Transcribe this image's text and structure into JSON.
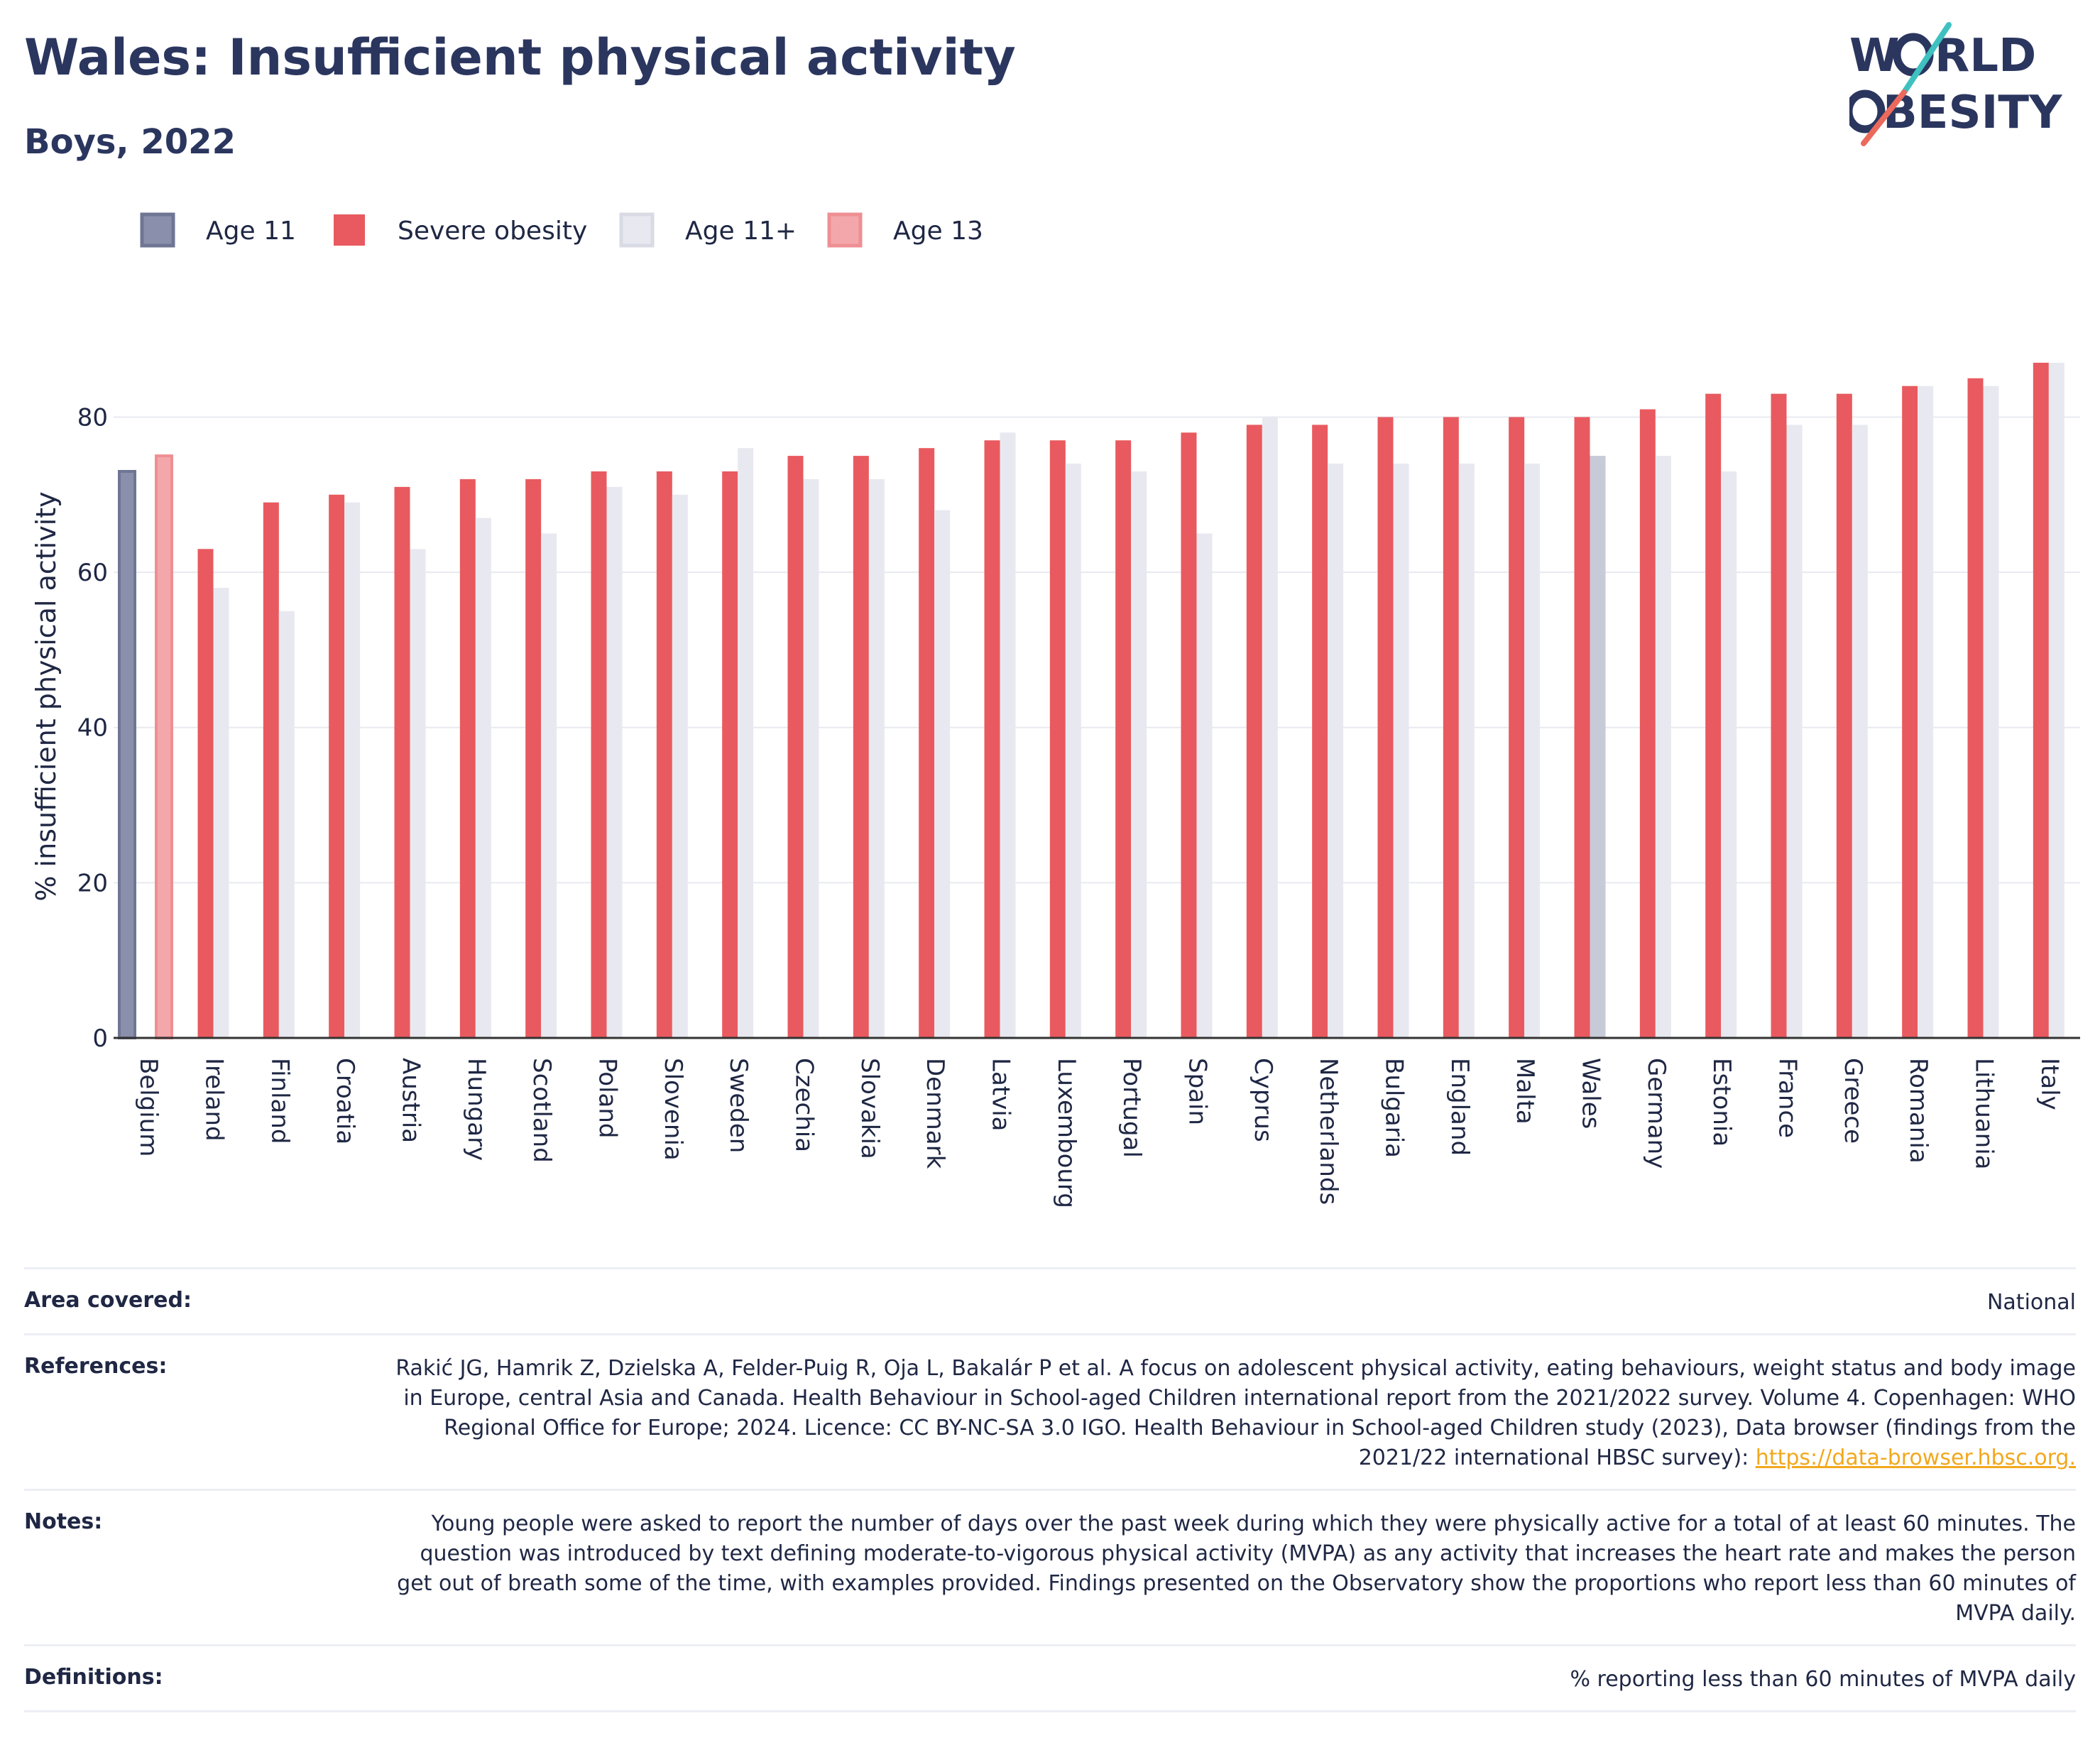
{
  "title": "Wales: Insufficient physical activity",
  "subtitle": "Boys, 2022",
  "logo": {
    "line1": "W∕RLD",
    "line2": "∕BESITY",
    "text": "WORLD OBESITY"
  },
  "colors": {
    "title": "#2b365f",
    "age11": "#8a90ab",
    "severe": "#e85a5f",
    "age11plus": "#e8e9f0",
    "age13": "#f3a7aa",
    "wales_highlight": "#c7cad7",
    "link": "#f2a81d"
  },
  "chart_data": {
    "type": "bar",
    "ylabel": "% insufficient physical activity",
    "xlabel": "",
    "ylim": [
      0,
      88
    ],
    "yticks": [
      0,
      20,
      40,
      60,
      80
    ],
    "grid": true,
    "legend_position": "top-left",
    "highlight": "Wales",
    "categories": [
      "Belgium",
      "Ireland",
      "Finland",
      "Croatia",
      "Austria",
      "Hungary",
      "Scotland",
      "Poland",
      "Slovenia",
      "Sweden",
      "Czechia",
      "Slovakia",
      "Denmark",
      "Latvia",
      "Luxembourg",
      "Portugal",
      "Spain",
      "Cyprus",
      "Netherlands",
      "Bulgaria",
      "England",
      "Malta",
      "Wales",
      "Germany",
      "Estonia",
      "France",
      "Greece",
      "Romania",
      "Lithuania",
      "Italy"
    ],
    "series": [
      {
        "name": "Age 11",
        "values": [
          73,
          null,
          null,
          null,
          null,
          null,
          null,
          null,
          null,
          null,
          null,
          null,
          null,
          null,
          null,
          null,
          null,
          null,
          null,
          null,
          null,
          null,
          null,
          null,
          null,
          null,
          null,
          null,
          null,
          null
        ]
      },
      {
        "name": "Severe obesity",
        "values": [
          null,
          63,
          69,
          70,
          71,
          72,
          72,
          73,
          73,
          73,
          75,
          75,
          76,
          77,
          77,
          77,
          78,
          79,
          79,
          80,
          80,
          80,
          80,
          81,
          83,
          83,
          83,
          84,
          85,
          87
        ]
      },
      {
        "name": "Age 11+",
        "values": [
          null,
          58,
          55,
          69,
          63,
          67,
          65,
          71,
          70,
          76,
          72,
          72,
          68,
          78,
          74,
          73,
          65,
          80,
          74,
          74,
          74,
          74,
          75,
          75,
          73,
          79,
          79,
          84,
          84,
          87
        ]
      },
      {
        "name": "Age 13",
        "values": [
          75,
          null,
          null,
          null,
          null,
          null,
          null,
          null,
          null,
          null,
          null,
          null,
          null,
          null,
          null,
          null,
          null,
          null,
          null,
          null,
          null,
          null,
          null,
          null,
          null,
          null,
          null,
          null,
          null,
          null
        ]
      }
    ]
  },
  "info": [
    {
      "label": "Area covered:",
      "value": "National"
    },
    {
      "label": "References:",
      "value": "Rakić JG, Hamrik Z, Dzielska A, Felder-Puig R, Oja L, Bakalár P et al. A focus on adolescent physical activity, eating behaviours, weight status and body image in Europe, central Asia and Canada. Health Behaviour in School-aged Children international report from the 2021/2022 survey. Volume 4. Copenhagen: WHO Regional Office for Europe; 2024. Licence: CC BY-NC-SA 3.0 IGO. Health Behaviour in School-aged Children study (2023), Data browser (findings from the 2021/22 international HBSC survey): ",
      "link": "https://data-browser.hbsc.org."
    },
    {
      "label": "Notes:",
      "value": "Young people were asked to report the number of days over the past week during which they were physically active for a total of at least 60 minutes. The question was introduced by text defining moderate-to-vigorous physical activity (MVPA) as any activity that increases the heart rate and makes the person get out of breath some of the time, with examples provided. Findings presented on the Observatory show the proportions who report less than 60 minutes of MVPA daily."
    },
    {
      "label": "Definitions:",
      "value": "% reporting less than 60 minutes of MVPA daily"
    }
  ]
}
